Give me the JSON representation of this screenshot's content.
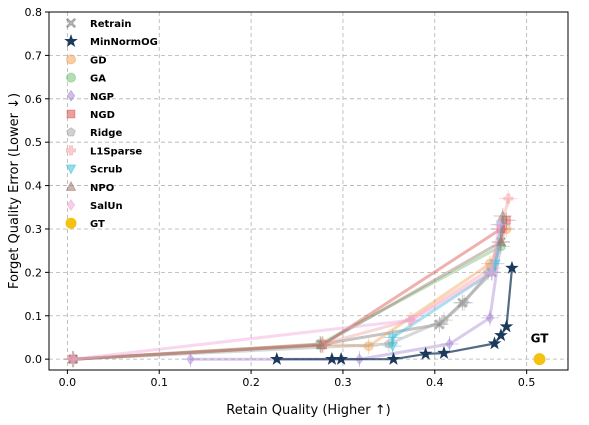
{
  "chart_data": {
    "type": "scatter",
    "xlabel": "Retain Quality (Higher ↑)",
    "ylabel": "Forget Quality Error (Lower ↓)",
    "xlim": [
      -0.02,
      0.545
    ],
    "ylim": [
      -0.025,
      0.8
    ],
    "xticks": [
      "0.0",
      "0.1",
      "0.2",
      "0.3",
      "0.4",
      "0.5"
    ],
    "yticks": [
      "0.0",
      "0.1",
      "0.2",
      "0.3",
      "0.4",
      "0.5",
      "0.6",
      "0.7",
      "0.8"
    ],
    "grid": true,
    "legend_position": "top-left",
    "annotations": [
      {
        "text": "GT",
        "x": 0.514,
        "y": 0.038
      }
    ],
    "series": [
      {
        "name": "Retrain",
        "marker": "x",
        "color": "#7f7f7f",
        "line": true,
        "points": [
          [
            0.006,
            0.0
          ],
          [
            0.276,
            0.034
          ],
          [
            0.405,
            0.08
          ],
          [
            0.43,
            0.13
          ],
          [
            0.462,
            0.2
          ],
          [
            0.472,
            0.27
          ]
        ]
      },
      {
        "name": "MinNormOG",
        "marker": "star",
        "color": "#1b3a5c",
        "line": true,
        "points": [
          [
            0.228,
            0.0
          ],
          [
            0.288,
            0.0
          ],
          [
            0.298,
            0.0
          ],
          [
            0.355,
            0.0
          ],
          [
            0.39,
            0.012
          ],
          [
            0.41,
            0.014
          ],
          [
            0.465,
            0.036
          ],
          [
            0.472,
            0.055
          ],
          [
            0.478,
            0.075
          ],
          [
            0.484,
            0.21
          ]
        ]
      },
      {
        "name": "GD",
        "marker": "circle",
        "color": "#f4a55a",
        "line": true,
        "points": [
          [
            0.006,
            0.0
          ],
          [
            0.278,
            0.034
          ],
          [
            0.328,
            0.03
          ],
          [
            0.46,
            0.22
          ],
          [
            0.478,
            0.3
          ]
        ]
      },
      {
        "name": "GA",
        "marker": "circle",
        "color": "#77c27a",
        "line": true,
        "points": [
          [
            0.007,
            0.0
          ],
          [
            0.275,
            0.035
          ],
          [
            0.472,
            0.26
          ]
        ]
      },
      {
        "name": "NGP",
        "marker": "diamond",
        "color": "#a98bd4",
        "line": true,
        "points": [
          [
            0.134,
            0.0
          ],
          [
            0.318,
            0.0
          ],
          [
            0.416,
            0.035
          ],
          [
            0.46,
            0.095
          ],
          [
            0.474,
            0.3
          ]
        ]
      },
      {
        "name": "NGD",
        "marker": "square",
        "color": "#d9534f",
        "line": true,
        "points": [
          [
            0.006,
            0.0
          ],
          [
            0.278,
            0.033
          ],
          [
            0.472,
            0.3
          ],
          [
            0.478,
            0.32
          ]
        ]
      },
      {
        "name": "Ridge",
        "marker": "pentagon",
        "color": "#a9a9a9",
        "line": true,
        "points": [
          [
            0.006,
            0.0
          ],
          [
            0.35,
            0.035
          ],
          [
            0.41,
            0.09
          ],
          [
            0.432,
            0.13
          ],
          [
            0.458,
            0.2
          ]
        ]
      },
      {
        "name": "L1Sparse",
        "marker": "plus",
        "color": "#f5a6a6",
        "line": true,
        "points": [
          [
            0.006,
            0.0
          ],
          [
            0.278,
            0.035
          ],
          [
            0.373,
            0.09
          ],
          [
            0.462,
            0.21
          ],
          [
            0.48,
            0.37
          ]
        ]
      },
      {
        "name": "Scrub",
        "marker": "triangle-down",
        "color": "#3fc1d6",
        "line": true,
        "points": [
          [
            0.354,
            0.03
          ],
          [
            0.354,
            0.05
          ],
          [
            0.462,
            0.2
          ],
          [
            0.466,
            0.22
          ],
          [
            0.472,
            0.31
          ]
        ]
      },
      {
        "name": "NPO",
        "marker": "triangle-up",
        "color": "#9c7b6f",
        "line": true,
        "points": [
          [
            0.006,
            0.0
          ],
          [
            0.276,
            0.032
          ],
          [
            0.472,
            0.27
          ],
          [
            0.474,
            0.33
          ]
        ]
      },
      {
        "name": "SalUn",
        "marker": "diamond",
        "color": "#f1a7d9",
        "line": true,
        "points": [
          [
            0.006,
            0.0
          ],
          [
            0.375,
            0.09
          ],
          [
            0.462,
            0.2
          ],
          [
            0.47,
            0.31
          ]
        ]
      },
      {
        "name": "GT",
        "marker": "circle",
        "color": "#f5c211",
        "line": false,
        "points": [
          [
            0.514,
            0.0
          ]
        ]
      }
    ]
  }
}
